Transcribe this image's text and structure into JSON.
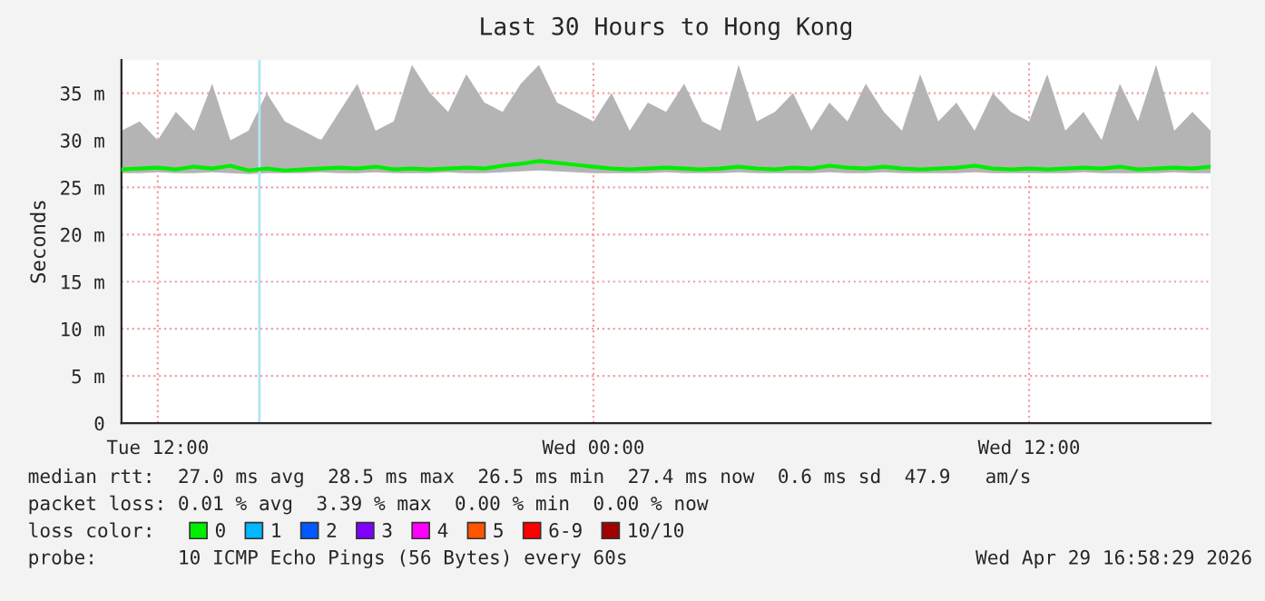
{
  "chart_data": {
    "type": "line",
    "title": "Last 30 Hours to Hong Kong",
    "ylabel": "Seconds",
    "x": [
      "2026-04-28T11:00",
      "2026-04-28T11:30",
      "2026-04-28T12:00",
      "2026-04-28T12:30",
      "2026-04-28T13:00",
      "2026-04-28T13:30",
      "2026-04-28T14:00",
      "2026-04-28T14:30",
      "2026-04-28T15:00",
      "2026-04-28T15:30",
      "2026-04-28T16:00",
      "2026-04-28T16:30",
      "2026-04-28T17:00",
      "2026-04-28T17:30",
      "2026-04-28T18:00",
      "2026-04-28T18:30",
      "2026-04-28T19:00",
      "2026-04-28T19:30",
      "2026-04-28T20:00",
      "2026-04-28T20:30",
      "2026-04-28T21:00",
      "2026-04-28T21:30",
      "2026-04-28T22:00",
      "2026-04-28T22:30",
      "2026-04-28T23:00",
      "2026-04-28T23:30",
      "2026-04-29T00:00",
      "2026-04-29T00:30",
      "2026-04-29T01:00",
      "2026-04-29T01:30",
      "2026-04-29T02:00",
      "2026-04-29T02:30",
      "2026-04-29T03:00",
      "2026-04-29T03:30",
      "2026-04-29T04:00",
      "2026-04-29T04:30",
      "2026-04-29T05:00",
      "2026-04-29T05:30",
      "2026-04-29T06:00",
      "2026-04-29T06:30",
      "2026-04-29T07:00",
      "2026-04-29T07:30",
      "2026-04-29T08:00",
      "2026-04-29T08:30",
      "2026-04-29T09:00",
      "2026-04-29T09:30",
      "2026-04-29T10:00",
      "2026-04-29T10:30",
      "2026-04-29T11:00",
      "2026-04-29T11:30",
      "2026-04-29T12:00",
      "2026-04-29T12:30",
      "2026-04-29T13:00",
      "2026-04-29T13:30",
      "2026-04-29T14:00",
      "2026-04-29T14:30",
      "2026-04-29T15:00",
      "2026-04-29T15:30",
      "2026-04-29T16:00",
      "2026-04-29T16:30",
      "2026-04-29T17:00"
    ],
    "series": [
      {
        "name": "0",
        "color": "#00ee00",
        "values": [
          26.9,
          27.0,
          27.1,
          26.9,
          27.2,
          27.0,
          27.3,
          26.8,
          27.0,
          26.8,
          26.9,
          27.0,
          27.1,
          27.0,
          27.2,
          26.9,
          27.0,
          26.9,
          27.0,
          27.1,
          27.0,
          27.3,
          27.5,
          27.8,
          27.6,
          27.4,
          27.2,
          27.0,
          26.9,
          27.0,
          27.1,
          27.0,
          26.9,
          27.0,
          27.2,
          27.0,
          26.9,
          27.1,
          27.0,
          27.3,
          27.1,
          27.0,
          27.2,
          27.0,
          26.9,
          27.0,
          27.1,
          27.3,
          27.0,
          26.9,
          27.0,
          26.9,
          27.0,
          27.1,
          27.0,
          27.2,
          26.9,
          27.0,
          27.1,
          27.0,
          27.2
        ],
        "lower": [
          26.5,
          26.5,
          26.6,
          26.5,
          26.5,
          26.6,
          26.5,
          26.4,
          26.5,
          26.5,
          26.5,
          26.6,
          26.5,
          26.5,
          26.6,
          26.5,
          26.5,
          26.5,
          26.6,
          26.5,
          26.5,
          26.6,
          26.7,
          26.8,
          26.7,
          26.6,
          26.5,
          26.5,
          26.5,
          26.5,
          26.6,
          26.5,
          26.5,
          26.5,
          26.6,
          26.5,
          26.5,
          26.5,
          26.5,
          26.6,
          26.5,
          26.5,
          26.6,
          26.5,
          26.5,
          26.5,
          26.5,
          26.6,
          26.5,
          26.5,
          26.5,
          26.5,
          26.5,
          26.6,
          26.5,
          26.5,
          26.5,
          26.5,
          26.6,
          26.5,
          26.5
        ],
        "upper": [
          31,
          32,
          30,
          33,
          31,
          36,
          30,
          31,
          35,
          32,
          31,
          30,
          33,
          36,
          31,
          32,
          38,
          35,
          33,
          37,
          34,
          33,
          36,
          38,
          34,
          33,
          32,
          35,
          31,
          34,
          33,
          36,
          32,
          31,
          38,
          32,
          33,
          35,
          31,
          34,
          32,
          36,
          33,
          31,
          37,
          32,
          34,
          31,
          35,
          33,
          32,
          37,
          31,
          33,
          30,
          36,
          32,
          38,
          31,
          33,
          31
        ]
      },
      {
        "name": "1",
        "color": "#00b8ff",
        "values": [
          null,
          null,
          null,
          null,
          null,
          null,
          null,
          null,
          null,
          null,
          null,
          null,
          null,
          null,
          null,
          null,
          null,
          null,
          null,
          null,
          null,
          null,
          null,
          null,
          null,
          null,
          null,
          null,
          null,
          null,
          null,
          null,
          null,
          null,
          null,
          null,
          null,
          null,
          null,
          null,
          null,
          null,
          null,
          null,
          null,
          null,
          null,
          null,
          null,
          null,
          null,
          null,
          null,
          null,
          null,
          null,
          null,
          null,
          null,
          null,
          null
        ]
      },
      {
        "name": "2",
        "color": "#0059ff",
        "values": [
          null,
          null,
          null,
          null,
          null,
          null,
          null,
          null,
          null,
          null,
          null,
          null,
          null,
          null,
          null,
          null,
          null,
          null,
          null,
          null,
          null,
          null,
          null,
          null,
          null,
          null,
          null,
          null,
          null,
          null,
          null,
          null,
          null,
          null,
          null,
          null,
          null,
          null,
          null,
          null,
          null,
          null,
          null,
          null,
          null,
          null,
          null,
          null,
          null,
          null,
          null,
          null,
          null,
          null,
          null,
          null,
          null,
          null,
          null,
          null,
          null
        ]
      },
      {
        "name": "3",
        "color": "#7e00ff",
        "values": [
          null,
          null,
          null,
          null,
          null,
          null,
          null,
          null,
          null,
          null,
          null,
          null,
          null,
          null,
          null,
          null,
          null,
          null,
          null,
          null,
          null,
          null,
          null,
          null,
          null,
          null,
          null,
          null,
          null,
          null,
          null,
          null,
          null,
          null,
          null,
          null,
          null,
          null,
          null,
          null,
          null,
          null,
          null,
          null,
          null,
          null,
          null,
          null,
          null,
          null,
          null,
          null,
          null,
          null,
          null,
          null,
          null,
          null,
          null,
          null,
          null
        ]
      },
      {
        "name": "4",
        "color": "#ff00ff",
        "values": [
          null,
          null,
          null,
          null,
          null,
          null,
          null,
          null,
          null,
          null,
          null,
          null,
          null,
          null,
          null,
          null,
          null,
          null,
          null,
          null,
          null,
          null,
          null,
          null,
          null,
          null,
          null,
          null,
          null,
          null,
          null,
          null,
          null,
          null,
          null,
          null,
          null,
          null,
          null,
          null,
          null,
          null,
          null,
          null,
          null,
          null,
          null,
          null,
          null,
          null,
          null,
          null,
          null,
          null,
          null,
          null,
          null,
          null,
          null,
          null,
          null
        ]
      },
      {
        "name": "5",
        "color": "#ff5500",
        "values": [
          null,
          null,
          null,
          null,
          null,
          null,
          null,
          null,
          null,
          null,
          null,
          null,
          null,
          null,
          null,
          null,
          null,
          null,
          null,
          null,
          null,
          null,
          null,
          null,
          null,
          null,
          null,
          null,
          null,
          null,
          null,
          null,
          null,
          null,
          null,
          null,
          null,
          null,
          null,
          null,
          null,
          null,
          null,
          null,
          null,
          null,
          null,
          null,
          null,
          null,
          null,
          null,
          null,
          null,
          null,
          null,
          null,
          null,
          null,
          null,
          null
        ]
      },
      {
        "name": "6-9",
        "color": "#ff0000",
        "values": [
          null,
          null,
          null,
          null,
          null,
          null,
          null,
          null,
          null,
          null,
          null,
          null,
          null,
          null,
          null,
          null,
          null,
          null,
          null,
          null,
          null,
          null,
          null,
          null,
          null,
          null,
          null,
          null,
          null,
          null,
          null,
          null,
          null,
          null,
          null,
          null,
          null,
          null,
          null,
          null,
          null,
          null,
          null,
          null,
          null,
          null,
          null,
          null,
          null,
          null,
          null,
          null,
          null,
          null,
          null,
          null,
          null,
          null,
          null,
          null,
          null
        ]
      },
      {
        "name": "10/10",
        "color": "#a10000",
        "values": [
          null,
          null,
          null,
          null,
          null,
          null,
          null,
          null,
          null,
          null,
          null,
          null,
          null,
          null,
          null,
          null,
          null,
          null,
          null,
          null,
          null,
          null,
          null,
          null,
          null,
          null,
          null,
          null,
          null,
          null,
          null,
          null,
          null,
          null,
          null,
          null,
          null,
          null,
          null,
          null,
          null,
          null,
          null,
          null,
          null,
          null,
          null,
          null,
          null,
          null,
          null,
          null,
          null,
          null,
          null,
          null,
          null,
          null,
          null,
          null,
          null
        ]
      }
    ],
    "legend_title": "loss color:",
    "legend": "bottom",
    "ref_lines": [
      {
        "axis": "x",
        "value": "2026-04-28T14:48",
        "color": "#aee6f5"
      }
    ],
    "xlim": [
      "2026-04-28T11:00",
      "2026-04-29T17:00"
    ],
    "xticks": [
      {
        "value": "2026-04-28T12:00",
        "label": "Tue 12:00"
      },
      {
        "value": "2026-04-29T00:00",
        "label": "Wed 00:00"
      },
      {
        "value": "2026-04-29T12:00",
        "label": "Wed 12:00"
      }
    ],
    "ylim": [
      0,
      38.5
    ],
    "yticks": [
      0,
      {
        "value": 5,
        "label": "5 m"
      },
      {
        "value": 10,
        "label": "10 m"
      },
      {
        "value": 15,
        "label": "15 m"
      },
      {
        "value": 20,
        "label": "20 m"
      },
      {
        "value": 25,
        "label": "25 m"
      },
      {
        "value": 30,
        "label": "30 m"
      },
      {
        "value": 35,
        "label": "35 m"
      }
    ],
    "grid": true,
    "line_style": "solid",
    "annotations": [
      "median rtt:  27.0 ms avg  28.5 ms max  26.5 ms min  27.4 ms now  0.6 ms sd  47.9   am/s",
      "packet loss: 0.01 % avg  3.39 % max  0.00 % min  0.00 % now",
      "probe:       10 ICMP Echo Pings (56 Bytes) every 60s",
      "Wed Apr 29 16:58:29 2026"
    ]
  }
}
